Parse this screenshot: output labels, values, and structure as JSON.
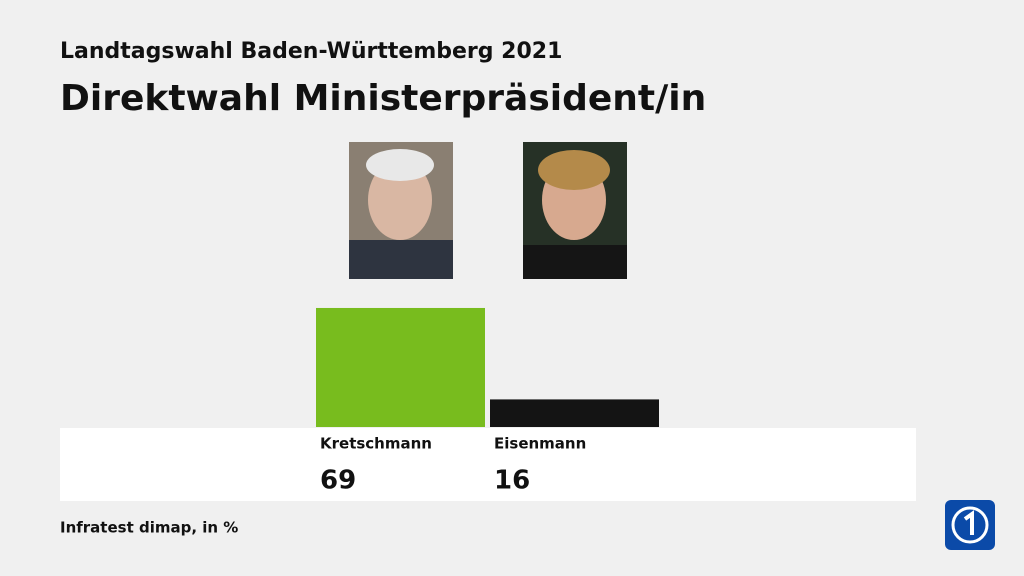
{
  "chart_data": {
    "type": "bar",
    "subtitle": "Landtagswahl Baden-Württemberg 2021",
    "title": "Direktwahl Ministerpräsident/in",
    "categories": [
      "Kretschmann",
      "Eisenmann"
    ],
    "values": [
      69,
      16
    ],
    "colors": [
      "#78bc1e",
      "#141414"
    ],
    "source": "Infratest dimap, in %"
  }
}
